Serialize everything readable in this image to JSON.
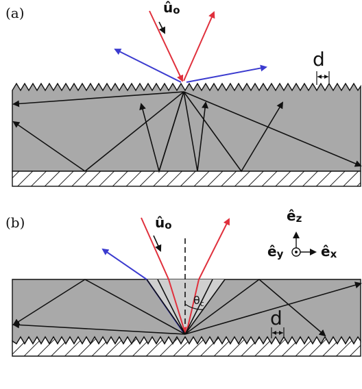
{
  "panel_a": {
    "label": "(a)",
    "incident_label_hat": "û",
    "incident_label_sub": "o",
    "period_label": "d"
  },
  "panel_b": {
    "label": "(b)",
    "incident_label_hat": "û",
    "incident_label_sub": "o",
    "axis_ez": "ê",
    "axis_ez_sub": "z",
    "axis_ex": "ê",
    "axis_ex_sub": "x",
    "axis_ey": "ê",
    "axis_ey_sub": "y",
    "angle_label": "θ",
    "angle_label_sub": "c",
    "period_label": "d"
  },
  "colors": {
    "slab_fill": "#a9a9a9",
    "cone_fill": "#cfcfcf",
    "red_ray": "#e0303c",
    "blue_ray": "#3b3bcf",
    "black_ray": "#111111",
    "hatch": "#222222"
  }
}
